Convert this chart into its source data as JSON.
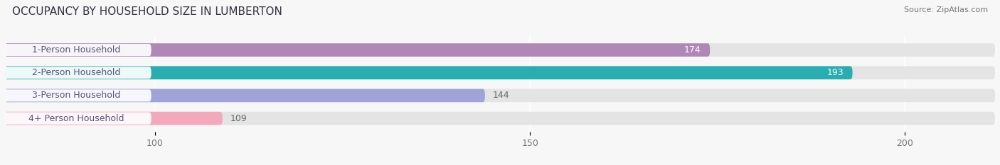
{
  "title": "OCCUPANCY BY HOUSEHOLD SIZE IN LUMBERTON",
  "source": "Source: ZipAtlas.com",
  "categories": [
    "1-Person Household",
    "2-Person Household",
    "3-Person Household",
    "4+ Person Household"
  ],
  "values": [
    174,
    193,
    144,
    109
  ],
  "bar_colors": [
    "#b088b8",
    "#28adb0",
    "#9fa3d8",
    "#f4a8bc"
  ],
  "bar_height": 0.58,
  "xmin": 80,
  "xlim_max": 212,
  "xticks": [
    100,
    150,
    200
  ],
  "title_fontsize": 11,
  "source_fontsize": 8,
  "label_fontsize": 9,
  "value_fontsize": 9,
  "background_color": "#f7f7f7",
  "bar_background_color": "#e4e4e4",
  "label_bg_color": "#ffffff",
  "value_inside_color": "#ffffff",
  "value_outside_color": "#666666",
  "inside_threshold": 150
}
